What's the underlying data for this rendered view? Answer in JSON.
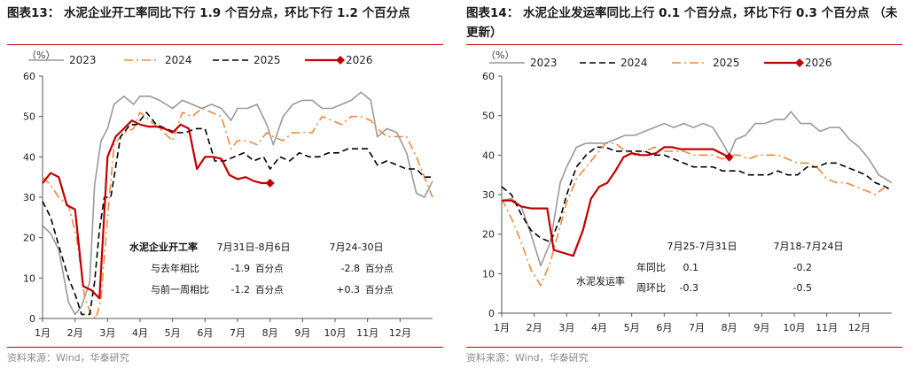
{
  "figures": [
    {
      "title": "图表13：  水泥企业开工率同比下行 1.9 个百分点，环比下行 1.2 个百分点",
      "source": "资料来源：Wind，华泰研究",
      "chart_data": {
        "type": "line",
        "yunit": "（%）",
        "ylim": [
          0,
          60
        ],
        "yticks": [
          "0",
          "10",
          "20",
          "30",
          "40",
          "50",
          "60"
        ],
        "xlim": [
          1,
          13
        ],
        "xticks": [
          "1月",
          "2月",
          "3月",
          "4月",
          "5月",
          "6月",
          "7月",
          "8月",
          "9月",
          "10月",
          "11月",
          "12月"
        ],
        "legend_position": "top",
        "series": [
          {
            "name": "2023",
            "color": "#9a9a9a",
            "style": "solid",
            "marker": "none",
            "x": [
              1.0,
              1.25,
              1.5,
              1.8,
              2.0,
              2.2,
              2.45,
              2.6,
              2.8,
              3.0,
              3.2,
              3.5,
              3.8,
              4.0,
              4.3,
              4.6,
              5.0,
              5.3,
              5.6,
              5.9,
              6.2,
              6.5,
              6.8,
              7.0,
              7.3,
              7.6,
              7.9,
              8.1,
              8.4,
              8.7,
              9.0,
              9.3,
              9.6,
              9.9,
              10.2,
              10.5,
              10.8,
              11.1,
              11.3,
              11.6,
              11.9,
              12.2,
              12.5,
              12.75,
              13.0
            ],
            "y": [
              23,
              21,
              17,
              4,
              1,
              3,
              9,
              33,
              44,
              47,
              53,
              55,
              53,
              55,
              55,
              54,
              52,
              54,
              53,
              52,
              53,
              52,
              49,
              52,
              52,
              53,
              48,
              43,
              50,
              53,
              54,
              54,
              52,
              52,
              53,
              54,
              56,
              54,
              45,
              47,
              46,
              41,
              31,
              30,
              34
            ]
          },
          {
            "name": "2024",
            "color": "#f0883c",
            "style": "dashdot",
            "marker": "none",
            "x": [
              1.0,
              1.25,
              1.5,
              1.8,
              2.05,
              2.3,
              2.5,
              2.65,
              2.8,
              3.0,
              3.2,
              3.5,
              3.8,
              4.0,
              4.3,
              4.6,
              5.0,
              5.3,
              5.6,
              5.9,
              6.2,
              6.5,
              6.8,
              7.0,
              7.3,
              7.6,
              7.9,
              8.1,
              8.4,
              8.7,
              9.0,
              9.3,
              9.6,
              9.9,
              10.2,
              10.5,
              10.8,
              11.1,
              11.3,
              11.6,
              11.9,
              12.2,
              12.5,
              12.75,
              13.0
            ],
            "y": [
              35,
              33,
              30,
              28,
              20,
              5,
              1,
              0,
              5,
              25,
              43,
              46,
              47,
              51,
              49,
              47,
              44,
              51,
              50,
              52,
              51,
              50,
              42,
              44,
              44,
              43,
              46,
              45,
              44,
              46,
              46,
              46,
              50,
              49,
              48,
              50,
              50,
              49,
              47,
              45,
              45,
              45,
              40,
              35,
              30
            ]
          },
          {
            "name": "2025",
            "color": "#000000",
            "style": "dashed",
            "marker": "none",
            "x": [
              1.0,
              1.25,
              1.5,
              1.8,
              2.0,
              2.2,
              2.45,
              2.6,
              2.75,
              2.9,
              3.1,
              3.4,
              3.7,
              3.9,
              4.2,
              4.5,
              4.8,
              5.1,
              5.4,
              5.7,
              6.0,
              6.3,
              6.6,
              6.9,
              7.2,
              7.5,
              7.8,
              8.0,
              8.3,
              8.6,
              8.9,
              9.2,
              9.5,
              9.8,
              10.1,
              10.4,
              10.7,
              11.0,
              11.3,
              11.6,
              11.9,
              12.2,
              12.5,
              12.75,
              13.0
            ],
            "y": [
              29,
              25,
              18,
              10,
              6,
              1,
              1,
              9,
              22,
              30,
              30,
              45,
              48,
              48,
              51,
              48,
              47,
              46,
              46,
              47,
              47,
              39,
              39,
              40,
              41,
              39,
              40,
              37,
              40,
              39,
              41,
              40,
              40,
              41,
              41,
              42,
              42,
              42,
              38,
              39,
              38,
              37,
              37,
              35,
              35
            ]
          },
          {
            "name": "2026",
            "color": "#c00000",
            "style": "solid",
            "marker": "diamond-end",
            "x": [
              1.0,
              1.25,
              1.5,
              1.75,
              2.0,
              2.25,
              2.5,
              2.75,
              3.0,
              3.25,
              3.5,
              3.75,
              4.0,
              4.25,
              4.5,
              4.75,
              5.0,
              5.25,
              5.5,
              5.75,
              6.0,
              6.25,
              6.5,
              6.75,
              7.0,
              7.25,
              7.5,
              7.75,
              8.0
            ],
            "y": [
              33.5,
              36,
              35,
              28,
              27,
              8,
              7,
              5,
              40,
              45,
              47,
              49,
              48,
              47.5,
              47.5,
              47,
              46,
              48,
              47,
              37,
              40,
              40,
              39.5,
              35.5,
              34.5,
              35,
              34,
              33.5,
              33.5
            ]
          }
        ],
        "table": {
          "header": [
            "水泥企业开工率",
            "7月31日-8月6日",
            "7月24-30日"
          ],
          "rows": [
            {
              "label": "与去年相比",
              "v1": "-1.9",
              "v2": "-2.8",
              "unit": "百分点"
            },
            {
              "label": "与前一周相比",
              "v1": "-1.2",
              "v2": "+0.3",
              "unit": "百分点"
            }
          ]
        }
      }
    },
    {
      "title": "图表14：  水泥企业发运率同比上行 0.1 个百分点，环比下行 0.3 个百分点  （未更新）",
      "source": "资料来源：Wind，华泰研究",
      "chart_data": {
        "type": "line",
        "yunit": "（%）",
        "ylim": [
          0,
          60
        ],
        "yticks": [
          "0",
          "10",
          "20",
          "30",
          "40",
          "50",
          "60"
        ],
        "xlim": [
          1,
          13
        ],
        "xticks": [
          "1月",
          "2月",
          "3月",
          "4月",
          "5月",
          "6月",
          "7月",
          "8月",
          "9月",
          "10月",
          "11月",
          "12月"
        ],
        "legend_position": "top",
        "series": [
          {
            "name": "2023",
            "color": "#9a9a9a",
            "style": "solid",
            "marker": "none",
            "x": [
              1.0,
              1.3,
              1.6,
              1.9,
              2.2,
              2.5,
              2.8,
              3.0,
              3.3,
              3.6,
              3.9,
              4.2,
              4.5,
              4.8,
              5.1,
              5.4,
              5.7,
              6.0,
              6.3,
              6.6,
              6.9,
              7.2,
              7.5,
              7.8,
              8.0,
              8.2,
              8.5,
              8.8,
              9.1,
              9.4,
              9.7,
              9.9,
              10.2,
              10.5,
              10.8,
              11.1,
              11.4,
              11.7,
              12.0,
              12.3,
              12.6,
              13.0
            ],
            "y": [
              28.5,
              29,
              27,
              20,
              12,
              18,
              33,
              37,
              42,
              43,
              43,
              43,
              44,
              45,
              45,
              46,
              47,
              48,
              47,
              48,
              47,
              48,
              47,
              43,
              40,
              44,
              45,
              48,
              48,
              49,
              49,
              51,
              48,
              48,
              46,
              47,
              47,
              44,
              42,
              39,
              35,
              33
            ]
          },
          {
            "name": "2024",
            "color": "#000000",
            "style": "dashed",
            "marker": "none",
            "x": [
              1.0,
              1.3,
              1.6,
              1.9,
              2.2,
              2.5,
              2.8,
              3.0,
              3.3,
              3.6,
              3.9,
              4.2,
              4.5,
              4.8,
              5.1,
              5.4,
              5.7,
              6.0,
              6.3,
              6.6,
              6.9,
              7.2,
              7.5,
              7.8,
              8.0,
              8.3,
              8.6,
              8.9,
              9.2,
              9.5,
              9.8,
              10.1,
              10.4,
              10.7,
              11.0,
              11.3,
              11.6,
              11.9,
              12.2,
              12.5,
              12.8,
              13.0
            ],
            "y": [
              32,
              30,
              25,
              21,
              19,
              18,
              24,
              30,
              37,
              40,
              42,
              42,
              41,
              41,
              41,
              41,
              40,
              40,
              39,
              38,
              37,
              37,
              37,
              36,
              36,
              36,
              35,
              35,
              35,
              36,
              35,
              35,
              37,
              37,
              38,
              38,
              37,
              36,
              35,
              33,
              32,
              31
            ]
          },
          {
            "name": "2025",
            "color": "#f0883c",
            "style": "dashdot",
            "marker": "none",
            "x": [
              1.0,
              1.3,
              1.6,
              1.9,
              2.2,
              2.5,
              2.8,
              3.0,
              3.3,
              3.6,
              3.9,
              4.2,
              4.5,
              4.8,
              5.1,
              5.4,
              5.7,
              6.0,
              6.3,
              6.6,
              6.9,
              7.2,
              7.5,
              7.8,
              8.0,
              8.3,
              8.6,
              8.9,
              9.2,
              9.5,
              9.8,
              10.1,
              10.4,
              10.7,
              11.0,
              11.3,
              11.6,
              11.9,
              12.2,
              12.5,
              12.8
            ],
            "y": [
              29,
              24,
              18,
              11,
              7,
              13,
              22,
              28,
              34,
              37,
              40,
              43,
              43,
              41,
              40,
              41,
              42,
              41,
              41,
              41,
              40,
              40,
              40,
              39,
              40,
              40,
              39,
              40,
              40,
              40,
              39,
              38,
              38,
              37,
              34,
              33,
              33,
              32,
              31,
              30,
              32
            ]
          },
          {
            "name": "2026",
            "color": "#c00000",
            "style": "solid",
            "marker": "diamond-end",
            "x": [
              1.0,
              1.3,
              1.6,
              1.9,
              2.2,
              2.4,
              2.6,
              2.8,
              3.0,
              3.2,
              3.5,
              3.75,
              4.0,
              4.25,
              4.5,
              4.75,
              5.0,
              5.25,
              5.5,
              5.75,
              6.0,
              6.25,
              6.5,
              6.75,
              7.0,
              7.25,
              7.5,
              7.75,
              8.0
            ],
            "y": [
              28.5,
              28.5,
              27,
              26.5,
              26.5,
              26.5,
              16,
              15.5,
              15,
              14.5,
              21,
              29,
              32,
              33,
              36,
              39.5,
              40.5,
              40,
              40,
              40.5,
              42,
              42,
              41.5,
              41.5,
              41.5,
              41.5,
              41.5,
              40.5,
              39.5
            ]
          }
        ],
        "table": {
          "header": [
            "",
            "7月25-7月31日",
            "7月18-7月24日"
          ],
          "group_label": "水泥发运率",
          "rows": [
            {
              "label": "年同比",
              "v1": "0.1",
              "v2": "-0.2",
              "unit": ""
            },
            {
              "label": "周环比",
              "v1": "-0.3",
              "v2": "-0.5",
              "unit": ""
            }
          ]
        }
      }
    }
  ]
}
